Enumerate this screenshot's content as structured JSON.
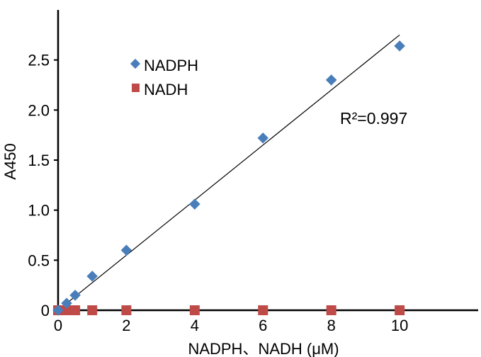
{
  "chart_data": {
    "type": "scatter",
    "title": "",
    "xlabel": "NADPH、NADH (μM)",
    "ylabel": "A450",
    "xlim": [
      0,
      12.3
    ],
    "ylim": [
      0,
      3.0
    ],
    "xticks": [
      0,
      2,
      4,
      6,
      8,
      10
    ],
    "xtick_labels": [
      "0",
      "2",
      "4",
      "6",
      "8",
      "10"
    ],
    "yticks": [
      0,
      0.5,
      1.0,
      1.5,
      2.0,
      2.5
    ],
    "ytick_labels": [
      "0",
      "0.5",
      "1.0",
      "1.5",
      "2.0",
      "2.5"
    ],
    "grid": false,
    "legend_position": "top-left",
    "series": [
      {
        "name": "NADPH",
        "marker": "diamond",
        "color": "#4a7ebb",
        "x": [
          0,
          0.25,
          0.5,
          1,
          2,
          4,
          6,
          8,
          10
        ],
        "y": [
          0,
          0.07,
          0.15,
          0.34,
          0.6,
          1.06,
          1.72,
          2.3,
          2.64
        ]
      },
      {
        "name": "NADH",
        "marker": "square",
        "color": "#be4b48",
        "x": [
          0,
          0.25,
          0.5,
          1,
          2,
          4,
          6,
          8,
          10
        ],
        "y": [
          0,
          0,
          0,
          0,
          0,
          0,
          0,
          0,
          0
        ]
      }
    ],
    "trendline": {
      "series": "NADPH",
      "slope": 0.275,
      "intercept": 0,
      "x_range": [
        0,
        10
      ],
      "color": "#000000"
    },
    "annotation": {
      "r2_label": "R²=0.997"
    }
  }
}
